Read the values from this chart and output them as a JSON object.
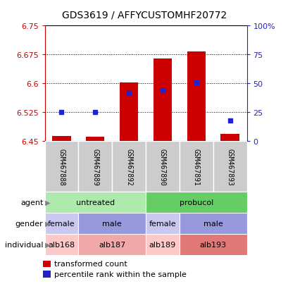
{
  "title": "GDS3619 / AFFYCUSTOMHF20772",
  "samples": [
    "GSM467888",
    "GSM467889",
    "GSM467892",
    "GSM467890",
    "GSM467891",
    "GSM467893"
  ],
  "red_values": [
    6.463,
    6.461,
    6.601,
    6.664,
    6.683,
    6.468
  ],
  "blue_values": [
    6.525,
    6.524,
    6.574,
    6.582,
    6.601,
    6.503
  ],
  "ylim_left": [
    6.45,
    6.75
  ],
  "ylim_right": [
    0,
    100
  ],
  "yticks_left": [
    6.45,
    6.525,
    6.6,
    6.675,
    6.75
  ],
  "yticks_right": [
    0,
    25,
    50,
    75,
    100
  ],
  "ytick_right_labels": [
    "0",
    "25",
    "50",
    "75",
    "100%"
  ],
  "bar_bottom": 6.45,
  "agent_data": [
    {
      "label": "untreated",
      "span": [
        0,
        3
      ],
      "color": "#aeeaae"
    },
    {
      "label": "probucol",
      "span": [
        3,
        6
      ],
      "color": "#66cc66"
    }
  ],
  "gender_data": [
    {
      "label": "female",
      "span": [
        0,
        1
      ],
      "color": "#c8c8f0"
    },
    {
      "label": "male",
      "span": [
        1,
        3
      ],
      "color": "#9898dc"
    },
    {
      "label": "female",
      "span": [
        3,
        4
      ],
      "color": "#c8c8f0"
    },
    {
      "label": "male",
      "span": [
        4,
        6
      ],
      "color": "#9898dc"
    }
  ],
  "individual_data": [
    {
      "label": "alb168",
      "span": [
        0,
        1
      ],
      "color": "#fcc8c8"
    },
    {
      "label": "alb187",
      "span": [
        1,
        3
      ],
      "color": "#f0a8a8"
    },
    {
      "label": "alb189",
      "span": [
        3,
        4
      ],
      "color": "#fcc8c8"
    },
    {
      "label": "alb193",
      "span": [
        4,
        6
      ],
      "color": "#e07878"
    }
  ],
  "red_color": "#cc0000",
  "blue_color": "#2222cc",
  "left_axis_color": "#cc0000",
  "right_axis_color": "#2222cc",
  "sample_box_color": "#cccccc",
  "n_samples": 6
}
